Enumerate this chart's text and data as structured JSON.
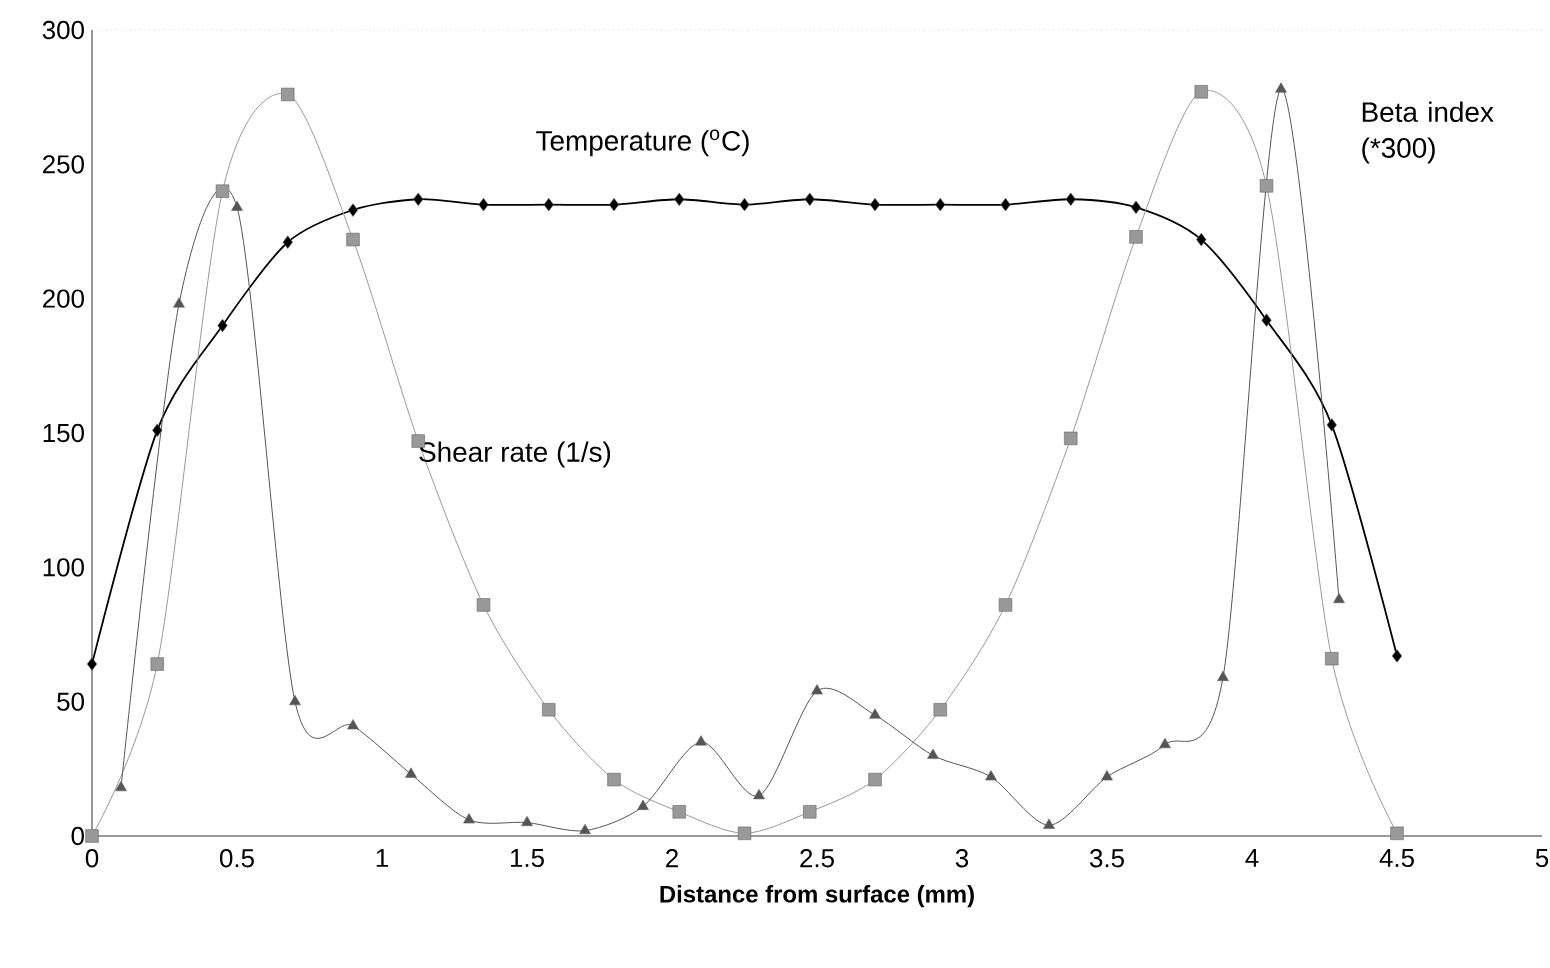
{
  "chart_data": {
    "type": "line",
    "xlabel": "Distance from surface (mm)",
    "xlim": [
      0,
      5
    ],
    "xticks": [
      0,
      0.5,
      1,
      1.5,
      2,
      2.5,
      3,
      3.5,
      4,
      4.5,
      5
    ],
    "ylim": [
      0,
      300
    ],
    "yticks": [
      0,
      50,
      100,
      150,
      200,
      250,
      300
    ],
    "grid": false,
    "legend": false,
    "series": [
      {
        "name": "Temperature ($^{o}$C)",
        "color": "#000000",
        "marker": "diamond",
        "x": [
          0,
          0.225,
          0.45,
          0.675,
          0.9,
          1.125,
          1.35,
          1.575,
          1.8,
          2.025,
          2.25,
          2.475,
          2.7,
          2.925,
          3.15,
          3.375,
          3.6,
          3.825,
          4.05,
          4.275,
          4.5
        ],
        "values": [
          64,
          151,
          190,
          221,
          233,
          237,
          235,
          235,
          235,
          237,
          235,
          237,
          235,
          235,
          235,
          237,
          234,
          222,
          192,
          153,
          67
        ]
      },
      {
        "name": "Shear rate (1/s)",
        "color": "#999999",
        "marker": "square",
        "x": [
          0,
          0.225,
          0.45,
          0.675,
          0.9,
          1.125,
          1.35,
          1.575,
          1.8,
          2.025,
          2.25,
          2.475,
          2.7,
          2.925,
          3.15,
          3.375,
          3.6,
          3.825,
          4.05,
          4.275,
          4.5
        ],
        "values": [
          0,
          64,
          240,
          276,
          222,
          147,
          86,
          47,
          21,
          9,
          1,
          9,
          21,
          47,
          86,
          148,
          223,
          277,
          242,
          66,
          1
        ]
      },
      {
        "name": "Beta index (*300)",
        "color": "#555555",
        "marker": "triangle",
        "x": [
          0.1,
          0.3,
          0.5,
          0.7,
          0.9,
          1.1,
          1.3,
          1.5,
          1.7,
          1.9,
          2.1,
          2.3,
          2.5,
          2.7,
          2.9,
          3.1,
          3.3,
          3.5,
          3.7,
          3.9,
          4.1,
          4.3
        ],
        "values": [
          18,
          198,
          234,
          50,
          41,
          23,
          6,
          5,
          2,
          11,
          35,
          15,
          54,
          45,
          30,
          22,
          4,
          22,
          34,
          59,
          278,
          88
        ]
      }
    ]
  }
}
